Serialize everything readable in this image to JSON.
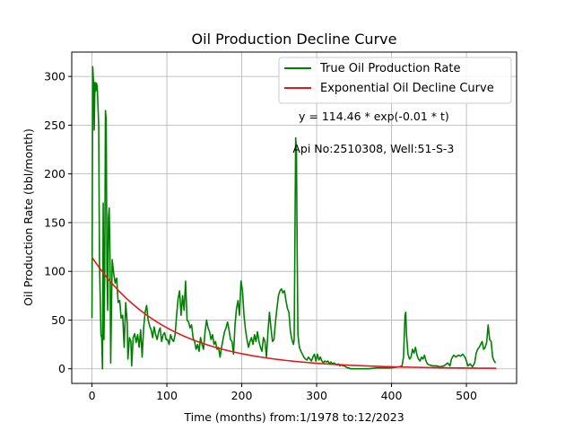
{
  "chart_data": {
    "type": "line",
    "title": "Oil Production Decline Curve",
    "xlabel": "Time (months) from:1/1978 to:12/2023",
    "ylabel": "Oil Production Rate (bbl/month)",
    "xlim": [
      -27,
      567
    ],
    "ylim": [
      -15,
      325
    ],
    "xticks": [
      0,
      100,
      200,
      300,
      400,
      500
    ],
    "yticks": [
      0,
      50,
      100,
      150,
      200,
      250,
      300
    ],
    "grid": true,
    "legend_position": "top-right",
    "annotations": [
      {
        "text": "y = 114.46 * exp(-0.01 * t)",
        "x": 276,
        "y": 255
      },
      {
        "text": "Api No:2510308, Well:51-S-3",
        "x": 268,
        "y": 222
      }
    ],
    "series": [
      {
        "name": "True Oil Production Rate",
        "color": "#008000",
        "points": [
          [
            0,
            52
          ],
          [
            1,
            310
          ],
          [
            2,
            295
          ],
          [
            3,
            245
          ],
          [
            4,
            294
          ],
          [
            5,
            285
          ],
          [
            6,
            293
          ],
          [
            7,
            290
          ],
          [
            8,
            270
          ],
          [
            9,
            250
          ],
          [
            10,
            110
          ],
          [
            12,
            35
          ],
          [
            13,
            32
          ],
          [
            14,
            0
          ],
          [
            15,
            170
          ],
          [
            16,
            30
          ],
          [
            17,
            95
          ],
          [
            18,
            265
          ],
          [
            19,
            255
          ],
          [
            20,
            100
          ],
          [
            21,
            60
          ],
          [
            22,
            155
          ],
          [
            23,
            165
          ],
          [
            24,
            120
          ],
          [
            25,
            6
          ],
          [
            27,
            112
          ],
          [
            29,
            98
          ],
          [
            31,
            88
          ],
          [
            33,
            93
          ],
          [
            35,
            68
          ],
          [
            37,
            70
          ],
          [
            39,
            52
          ],
          [
            41,
            55
          ],
          [
            43,
            22
          ],
          [
            45,
            68
          ],
          [
            47,
            48
          ],
          [
            48,
            10
          ],
          [
            50,
            32
          ],
          [
            52,
            28
          ],
          [
            53,
            3
          ],
          [
            55,
            32
          ],
          [
            57,
            36
          ],
          [
            59,
            27
          ],
          [
            61,
            35
          ],
          [
            63,
            22
          ],
          [
            65,
            40
          ],
          [
            67,
            12
          ],
          [
            69,
            42
          ],
          [
            71,
            58
          ],
          [
            73,
            65
          ],
          [
            75,
            50
          ],
          [
            77,
            44
          ],
          [
            79,
            40
          ],
          [
            81,
            32
          ],
          [
            83,
            43
          ],
          [
            85,
            35
          ],
          [
            87,
            30
          ],
          [
            89,
            38
          ],
          [
            91,
            42
          ],
          [
            93,
            28
          ],
          [
            95,
            35
          ],
          [
            97,
            37
          ],
          [
            99,
            30
          ],
          [
            101,
            30
          ],
          [
            103,
            25
          ],
          [
            105,
            35
          ],
          [
            107,
            30
          ],
          [
            109,
            28
          ],
          [
            111,
            35
          ],
          [
            113,
            55
          ],
          [
            115,
            72
          ],
          [
            117,
            80
          ],
          [
            119,
            55
          ],
          [
            121,
            75
          ],
          [
            123,
            60
          ],
          [
            125,
            90
          ],
          [
            127,
            50
          ],
          [
            129,
            48
          ],
          [
            131,
            42
          ],
          [
            133,
            45
          ],
          [
            135,
            32
          ],
          [
            137,
            28
          ],
          [
            139,
            20
          ],
          [
            141,
            25
          ],
          [
            143,
            18
          ],
          [
            145,
            32
          ],
          [
            147,
            25
          ],
          [
            149,
            20
          ],
          [
            151,
            38
          ],
          [
            153,
            50
          ],
          [
            155,
            42
          ],
          [
            157,
            38
          ],
          [
            159,
            30
          ],
          [
            161,
            35
          ],
          [
            163,
            25
          ],
          [
            165,
            28
          ],
          [
            167,
            20
          ],
          [
            169,
            22
          ],
          [
            171,
            12
          ],
          [
            173,
            22
          ],
          [
            175,
            30
          ],
          [
            177,
            38
          ],
          [
            179,
            42
          ],
          [
            181,
            48
          ],
          [
            183,
            40
          ],
          [
            185,
            30
          ],
          [
            187,
            28
          ],
          [
            189,
            15
          ],
          [
            191,
            45
          ],
          [
            193,
            62
          ],
          [
            195,
            70
          ],
          [
            197,
            55
          ],
          [
            199,
            90
          ],
          [
            201,
            80
          ],
          [
            203,
            55
          ],
          [
            205,
            40
          ],
          [
            207,
            30
          ],
          [
            209,
            22
          ],
          [
            211,
            28
          ],
          [
            213,
            32
          ],
          [
            215,
            25
          ],
          [
            217,
            35
          ],
          [
            219,
            28
          ],
          [
            221,
            38
          ],
          [
            223,
            28
          ],
          [
            225,
            22
          ],
          [
            227,
            18
          ],
          [
            229,
            32
          ],
          [
            231,
            28
          ],
          [
            233,
            12
          ],
          [
            235,
            38
          ],
          [
            237,
            58
          ],
          [
            239,
            42
          ],
          [
            241,
            28
          ],
          [
            243,
            30
          ],
          [
            245,
            48
          ],
          [
            247,
            62
          ],
          [
            249,
            75
          ],
          [
            251,
            80
          ],
          [
            253,
            82
          ],
          [
            255,
            78
          ],
          [
            257,
            80
          ],
          [
            259,
            70
          ],
          [
            261,
            62
          ],
          [
            263,
            58
          ],
          [
            265,
            38
          ],
          [
            267,
            30
          ],
          [
            269,
            25
          ],
          [
            270,
            30
          ],
          [
            272,
            237
          ],
          [
            273,
            225
          ],
          [
            274,
            120
          ],
          [
            275,
            35
          ],
          [
            277,
            22
          ],
          [
            279,
            18
          ],
          [
            281,
            15
          ],
          [
            283,
            12
          ],
          [
            285,
            10
          ],
          [
            287,
            9
          ],
          [
            289,
            12
          ],
          [
            291,
            10
          ],
          [
            293,
            8
          ],
          [
            295,
            12
          ],
          [
            297,
            15
          ],
          [
            299,
            8
          ],
          [
            301,
            15
          ],
          [
            303,
            9
          ],
          [
            305,
            12
          ],
          [
            307,
            8
          ],
          [
            309,
            6
          ],
          [
            311,
            8
          ],
          [
            313,
            7
          ],
          [
            315,
            8
          ],
          [
            317,
            5
          ],
          [
            319,
            7
          ],
          [
            321,
            5
          ],
          [
            323,
            6
          ],
          [
            325,
            5
          ],
          [
            327,
            4
          ],
          [
            329,
            5
          ],
          [
            331,
            3
          ],
          [
            333,
            4
          ],
          [
            335,
            3
          ],
          [
            337,
            3
          ],
          [
            339,
            2
          ],
          [
            341,
            1
          ],
          [
            343,
            1
          ],
          [
            345,
            0
          ],
          [
            350,
            0
          ],
          [
            360,
            0
          ],
          [
            370,
            0
          ],
          [
            380,
            1
          ],
          [
            390,
            1
          ],
          [
            400,
            1
          ],
          [
            410,
            2
          ],
          [
            414,
            3
          ],
          [
            416,
            12
          ],
          [
            418,
            55
          ],
          [
            419,
            58
          ],
          [
            420,
            35
          ],
          [
            422,
            15
          ],
          [
            424,
            10
          ],
          [
            426,
            12
          ],
          [
            428,
            20
          ],
          [
            430,
            16
          ],
          [
            432,
            22
          ],
          [
            434,
            14
          ],
          [
            436,
            10
          ],
          [
            438,
            8
          ],
          [
            440,
            12
          ],
          [
            442,
            10
          ],
          [
            444,
            14
          ],
          [
            446,
            8
          ],
          [
            448,
            5
          ],
          [
            450,
            4
          ],
          [
            455,
            3
          ],
          [
            460,
            3
          ],
          [
            465,
            2
          ],
          [
            470,
            3
          ],
          [
            475,
            6
          ],
          [
            478,
            3
          ],
          [
            480,
            10
          ],
          [
            483,
            14
          ],
          [
            486,
            12
          ],
          [
            489,
            14
          ],
          [
            492,
            13
          ],
          [
            495,
            15
          ],
          [
            498,
            12
          ],
          [
            500,
            8
          ],
          [
            502,
            3
          ],
          [
            505,
            5
          ],
          [
            508,
            2
          ],
          [
            511,
            6
          ],
          [
            513,
            16
          ],
          [
            515,
            20
          ],
          [
            517,
            22
          ],
          [
            519,
            25
          ],
          [
            521,
            28
          ],
          [
            523,
            20
          ],
          [
            525,
            22
          ],
          [
            527,
            27
          ],
          [
            529,
            45
          ],
          [
            531,
            30
          ],
          [
            533,
            28
          ],
          [
            535,
            12
          ],
          [
            537,
            8
          ],
          [
            539,
            6
          ]
        ]
      },
      {
        "name": "Exponential Oil Decline Curve",
        "color": "#e31a1c",
        "equation": {
          "a": 114.46,
          "b": -0.01
        },
        "t_range": [
          0,
          540
        ]
      }
    ]
  }
}
